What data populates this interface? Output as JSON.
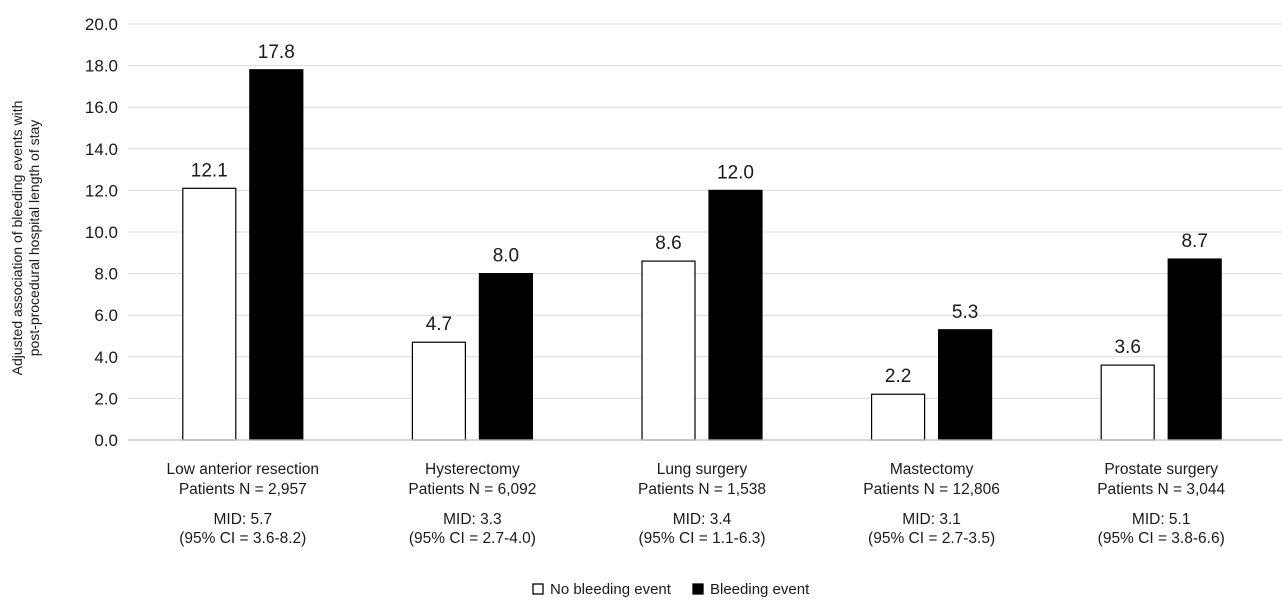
{
  "chart_data": {
    "type": "bar",
    "ylabel_lines": [
      "Adjusted association of bleeding events with",
      "post-procedural hospital length of stay"
    ],
    "ylim": [
      0,
      20
    ],
    "yticks": [
      "0.0",
      "2.0",
      "4.0",
      "6.0",
      "8.0",
      "10.0",
      "12.0",
      "14.0",
      "16.0",
      "18.0",
      "20.0"
    ],
    "grid": true,
    "legend_position": "bottom-center",
    "categories": [
      {
        "name": "Low anterior resection",
        "patients": "Patients N = 2,957",
        "mid": "MID: 5.7",
        "ci": "(95% CI = 3.6-8.2)"
      },
      {
        "name": "Hysterectomy",
        "patients": "Patients N = 6,092",
        "mid": "MID: 3.3",
        "ci": "(95% CI = 2.7-4.0)"
      },
      {
        "name": "Lung surgery",
        "patients": "Patients N = 1,538",
        "mid": "MID: 3.4",
        "ci": "(95% CI = 1.1-6.3)"
      },
      {
        "name": "Mastectomy",
        "patients": "Patients N = 12,806",
        "mid": "MID: 3.1",
        "ci": "(95% CI = 2.7-3.5)"
      },
      {
        "name": "Prostate surgery",
        "patients": "Patients N = 3,044",
        "mid": "MID: 5.1",
        "ci": "(95% CI = 3.8-6.6)"
      }
    ],
    "series": [
      {
        "name": "No bleeding event",
        "fill": "#ffffff",
        "stroke": "#000000",
        "values": [
          12.1,
          4.7,
          8.6,
          2.2,
          3.6
        ],
        "labels": [
          "12.1",
          "4.7",
          "8.6",
          "2.2",
          "3.6"
        ]
      },
      {
        "name": "Bleeding event",
        "fill": "#000000",
        "stroke": "#000000",
        "values": [
          17.8,
          8.0,
          12.0,
          5.3,
          8.7
        ],
        "labels": [
          "17.8",
          "8.0",
          "12.0",
          "5.3",
          "8.7"
        ]
      }
    ],
    "colors": {
      "grid": "#d9d9d9",
      "axis": "#bfbfbf"
    }
  }
}
